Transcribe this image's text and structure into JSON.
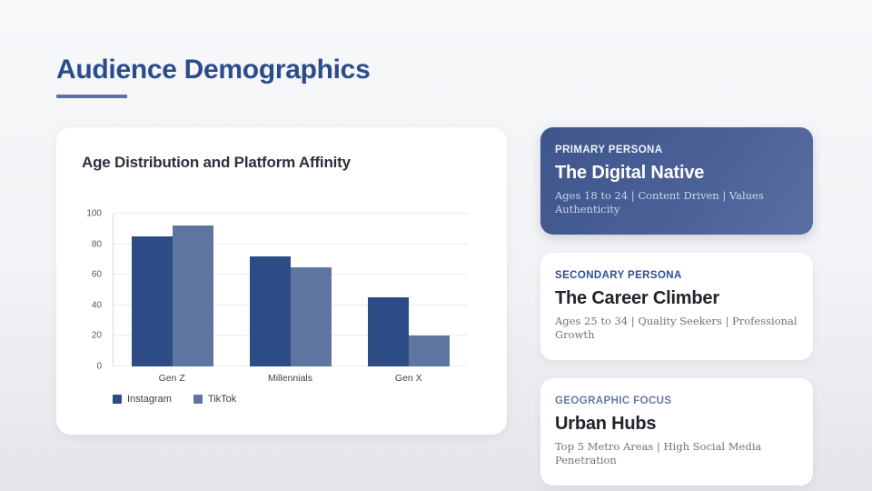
{
  "header": {
    "title": "Audience Demographics"
  },
  "chart_data": {
    "type": "bar",
    "title": "Age Distribution and Platform Affinity",
    "categories": [
      "Gen Z",
      "Millennials",
      "Gen X"
    ],
    "series": [
      {
        "name": "Instagram",
        "color": "#2d4b85",
        "values": [
          85,
          72,
          45
        ]
      },
      {
        "name": "TikTok",
        "color": "#5d75a0",
        "values": [
          92,
          65,
          20
        ]
      }
    ],
    "xlabel": "",
    "ylabel": "",
    "ylim": [
      0,
      100
    ],
    "yticks": [
      0,
      20,
      40,
      60,
      80,
      100
    ],
    "grid": true,
    "legend_position": "bottom"
  },
  "cards": [
    {
      "label": "PRIMARY PERSONA",
      "title": "The Digital Native",
      "subtitle": "Ages 18 to 24 | Content Driven | Values Authenticity"
    },
    {
      "label": "SECONDARY PERSONA",
      "title": "The Career Climber",
      "subtitle": "Ages 25 to 34 | Quality Seekers | Professional Growth"
    },
    {
      "label": "GEOGRAPHIC FOCUS",
      "title": "Urban Hubs",
      "subtitle": "Top 5 Metro Areas | High Social Media Penetration"
    }
  ],
  "colors": {
    "accent_blue": "#2b4c8c",
    "underline": "#5b72a3",
    "instagram_bar": "#2d4b85",
    "tiktok_bar": "#5d75a0",
    "primary_card_gradient_start": "#3d568c",
    "primary_card_gradient_end": "#5a6fa3"
  }
}
